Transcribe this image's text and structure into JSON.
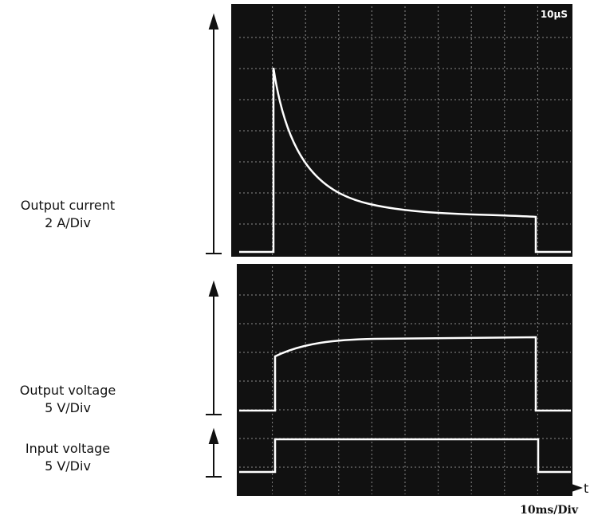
{
  "labels": {
    "output_current": "Output current",
    "output_current_scale": "2 A/Div",
    "output_voltage": "Output voltage",
    "output_voltage_scale": "5 V/Div",
    "input_voltage": "Input voltage",
    "input_voltage_scale": "5 V/Div",
    "time_axis": "t",
    "time_scale": "10ms/Div",
    "scope_readout": "10μS"
  }
}
